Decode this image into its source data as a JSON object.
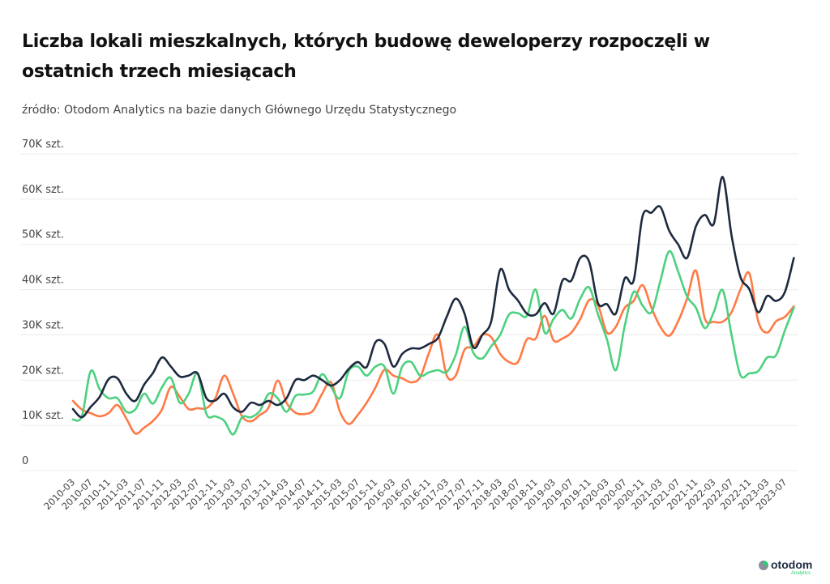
{
  "title": "Liczba lokali mieszkalnych, których budowę deweloperzy rozpoczęli w ostatnich trzech miesiącach",
  "subtitle": "źródło: Otodom Analytics na bazie danych Głównego Urzędu Statystycznego",
  "logo": {
    "name": "otodom",
    "sub": "Analytics"
  },
  "chart_data": {
    "type": "line",
    "title": "Liczba lokali mieszkalnych, których budowę deweloperzy rozpoczęli w ostatnich trzech miesiącach",
    "xlabel": "",
    "ylabel": "",
    "ylim": [
      0,
      70000
    ],
    "grid": true,
    "legend": "none",
    "y_tick_values": [
      0,
      10000,
      20000,
      30000,
      40000,
      50000,
      60000,
      70000
    ],
    "y_tick_labels": [
      "0",
      "10K szt.",
      "20K szt.",
      "30K szt.",
      "40K szt.",
      "50K szt.",
      "60K szt.",
      "70K szt."
    ],
    "x_tick_labels": [
      "2010-03",
      "2010-07",
      "2010-11",
      "2011-03",
      "2011-07",
      "2011-11",
      "2012-03",
      "2012-07",
      "2012-11",
      "2013-03",
      "2013-07",
      "2013-11",
      "2014-03",
      "2014-07",
      "2014-11",
      "2015-03",
      "2015-07",
      "2015-11",
      "2016-03",
      "2016-07",
      "2016-11",
      "2017-03",
      "2017-07",
      "2017-11",
      "2018-03",
      "2018-07",
      "2018-11",
      "2019-03",
      "2019-07",
      "2019-11",
      "2020-03",
      "2020-07",
      "2020-11",
      "2021-03",
      "2021-07",
      "2021-11",
      "2022-03",
      "2022-07",
      "2022-11",
      "2023-03",
      "2023-07"
    ],
    "x": [
      "2010-03",
      "2010-05",
      "2010-07",
      "2010-09",
      "2010-11",
      "2011-01",
      "2011-03",
      "2011-05",
      "2011-07",
      "2011-09",
      "2011-11",
      "2012-01",
      "2012-03",
      "2012-05",
      "2012-07",
      "2012-09",
      "2012-11",
      "2013-01",
      "2013-03",
      "2013-05",
      "2013-07",
      "2013-09",
      "2013-11",
      "2014-01",
      "2014-03",
      "2014-05",
      "2014-07",
      "2014-09",
      "2014-11",
      "2015-01",
      "2015-03",
      "2015-05",
      "2015-07",
      "2015-09",
      "2015-11",
      "2016-01",
      "2016-03",
      "2016-05",
      "2016-07",
      "2016-09",
      "2016-11",
      "2017-01",
      "2017-03",
      "2017-05",
      "2017-07",
      "2017-09",
      "2017-11",
      "2018-01",
      "2018-03",
      "2018-05",
      "2018-07",
      "2018-09",
      "2018-11",
      "2019-01",
      "2019-03",
      "2019-05",
      "2019-07",
      "2019-09",
      "2019-11",
      "2020-01",
      "2020-03",
      "2020-05",
      "2020-07",
      "2020-09",
      "2020-11",
      "2021-01",
      "2021-03",
      "2021-05",
      "2021-07",
      "2021-09",
      "2021-11",
      "2022-01",
      "2022-03",
      "2022-05",
      "2022-07",
      "2022-09",
      "2022-11",
      "2023-01",
      "2023-03",
      "2023-05",
      "2023-07",
      "2023-09"
    ],
    "series": [
      {
        "color": "#1e2a3f",
        "values": [
          13600,
          11800,
          14100,
          16300,
          20200,
          20400,
          17000,
          15400,
          19000,
          21600,
          25000,
          23000,
          20800,
          21000,
          21500,
          16000,
          15500,
          17000,
          14000,
          13000,
          15000,
          14500,
          15400,
          14500,
          16000,
          20000,
          20000,
          21000,
          20000,
          18800,
          20000,
          22500,
          24000,
          22900,
          28400,
          28000,
          23000,
          25800,
          27000,
          27000,
          28000,
          29300,
          34000,
          38000,
          34700,
          27200,
          30000,
          33000,
          44400,
          40000,
          37600,
          34700,
          34500,
          37000,
          34700,
          42000,
          42000,
          47000,
          46200,
          37000,
          36800,
          34700,
          42500,
          42000,
          56200,
          57000,
          58300,
          53000,
          50000,
          47000,
          54000,
          56500,
          54500,
          64900,
          52000,
          42800,
          40100,
          35000,
          38600,
          37500,
          39500,
          47000
        ]
      },
      {
        "color": "#4cd17f",
        "values": [
          11300,
          12000,
          22000,
          18000,
          16000,
          16000,
          13000,
          13500,
          17000,
          14800,
          18400,
          20500,
          15000,
          17000,
          21500,
          12500,
          12000,
          11000,
          8000,
          11800,
          11800,
          13200,
          17000,
          16000,
          13000,
          16500,
          16800,
          17500,
          21300,
          18500,
          16000,
          22000,
          23000,
          21000,
          23000,
          23000,
          17000,
          23000,
          24000,
          21000,
          21700,
          22200,
          21800,
          25500,
          31800,
          26000,
          24800,
          27500,
          30000,
          34500,
          34800,
          34200,
          40000,
          30500,
          33500,
          35500,
          33600,
          38000,
          40500,
          34500,
          29000,
          22200,
          32000,
          39500,
          36500,
          35000,
          41900,
          48500,
          44000,
          38500,
          36000,
          31500,
          35000,
          39900,
          30000,
          21100,
          21500,
          22000,
          25000,
          25500,
          31000,
          36000
        ]
      },
      {
        "color": "#ff7a45",
        "values": [
          15400,
          13500,
          12700,
          12000,
          12700,
          14500,
          11500,
          8200,
          9500,
          11000,
          13500,
          18500,
          16300,
          13600,
          13800,
          13800,
          16000,
          21000,
          17000,
          12000,
          10900,
          12300,
          14000,
          19900,
          15000,
          12800,
          12500,
          13300,
          17000,
          19500,
          13000,
          10300,
          12300,
          15000,
          18400,
          22300,
          21000,
          20400,
          19500,
          20600,
          26000,
          30000,
          21000,
          21000,
          26700,
          27400,
          30000,
          29500,
          25800,
          24000,
          24000,
          29000,
          29200,
          34200,
          28800,
          29200,
          30500,
          33500,
          37700,
          36500,
          30500,
          31800,
          36000,
          37500,
          41000,
          36000,
          31800,
          29800,
          33000,
          38000,
          44200,
          33600,
          32900,
          32900,
          35000,
          40000,
          43600,
          33000,
          30500,
          33000,
          34000,
          36300
        ]
      }
    ]
  }
}
